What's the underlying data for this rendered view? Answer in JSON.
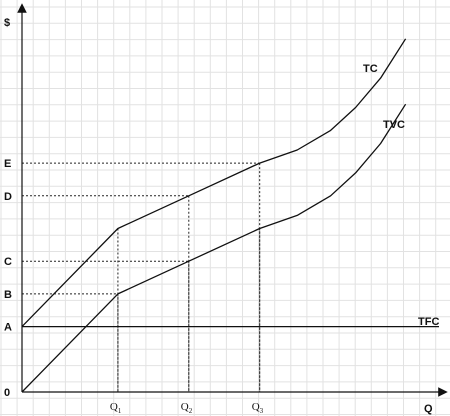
{
  "chart_data": {
    "type": "line",
    "title": "",
    "ylabel": "$",
    "xlabel": "Q",
    "origin_label": "0",
    "grid": true,
    "xlim": [
      0,
      100
    ],
    "ylim": [
      0,
      100
    ],
    "y_levels": [
      {
        "label": "A",
        "value": 20
      },
      {
        "label": "B",
        "value": 30
      },
      {
        "label": "C",
        "value": 40
      },
      {
        "label": "D",
        "value": 60
      },
      {
        "label": "E",
        "value": 70
      }
    ],
    "x_levels": [
      {
        "letter": "Q",
        "sub": "1",
        "value": 23
      },
      {
        "letter": "Q",
        "sub": "2",
        "value": 40
      },
      {
        "letter": "Q",
        "sub": "3",
        "value": 57
      }
    ],
    "series": [
      {
        "name": "TFC",
        "x": [
          0,
          100
        ],
        "y": [
          20,
          20
        ]
      },
      {
        "name": "TVC",
        "x": [
          0,
          23,
          40,
          57,
          66,
          74,
          80,
          86,
          92
        ],
        "y": [
          0,
          30,
          40,
          50,
          54,
          60,
          67,
          76,
          88
        ]
      },
      {
        "name": "TC",
        "x": [
          0,
          23,
          40,
          57,
          66,
          74,
          80,
          86,
          92
        ],
        "y": [
          20,
          50,
          60,
          70,
          74,
          80,
          87,
          96,
          108
        ]
      }
    ],
    "guides": [
      {
        "x": 23,
        "y": 30,
        "level": "B"
      },
      {
        "x": 40,
        "y": 40,
        "level": "C"
      },
      {
        "x": 40,
        "y": 60,
        "level": "D"
      },
      {
        "x": 57,
        "y": 70,
        "level": "E"
      },
      {
        "x": 23,
        "y": 50,
        "level": ""
      },
      {
        "x": 57,
        "y": 50,
        "level": ""
      }
    ]
  }
}
